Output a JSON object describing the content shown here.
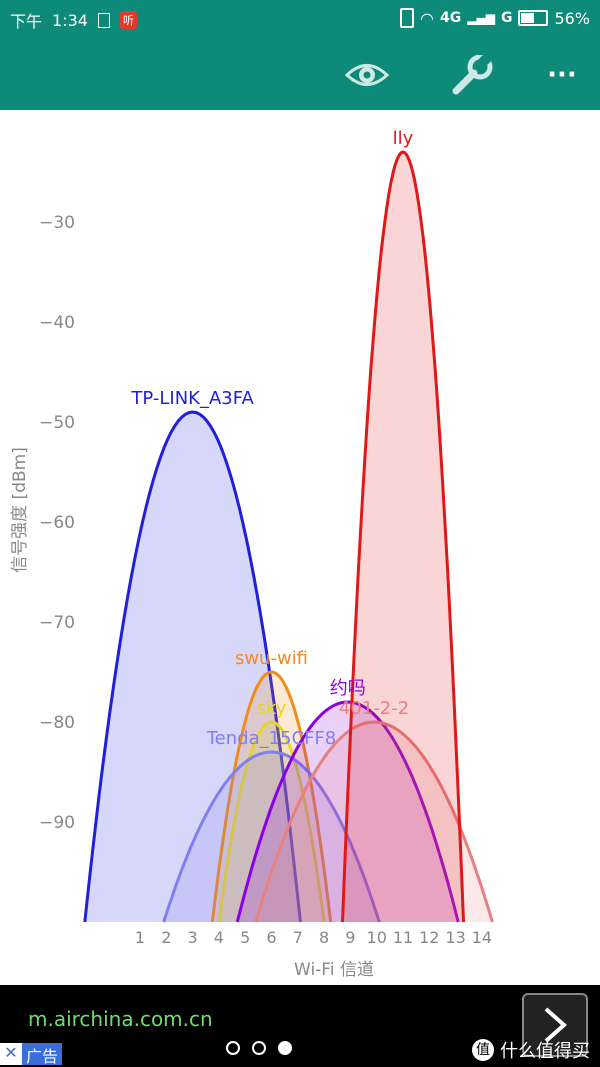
{
  "status_bar": {
    "time_prefix": "下午",
    "time": "1:34",
    "listen_badge": "听",
    "network": "4G",
    "network2": "G",
    "battery": "56%"
  },
  "toolbar": {
    "icons": [
      "eye-icon",
      "wrench-icon",
      "more-icon"
    ],
    "more_label": "···"
  },
  "chart_data": {
    "type": "area",
    "ylabel": "信号强度 [dBm]",
    "xlabel": "Wi-Fi  信道",
    "x_ticks": [
      1,
      2,
      3,
      4,
      5,
      6,
      7,
      8,
      9,
      10,
      11,
      12,
      13,
      14
    ],
    "y_ticks": [
      -30,
      -40,
      -50,
      -60,
      -70,
      -80,
      -90
    ],
    "ylim": [
      -100,
      -24
    ],
    "series": [
      {
        "name": "TP-LINK_A3FA",
        "channel": 3,
        "half_width": 4.1,
        "peak_dbm": -49,
        "color": "#1f1fdc"
      },
      {
        "name": "swu-wifi",
        "channel": 6,
        "half_width": 2.25,
        "peak_dbm": -75,
        "color": "#f08c1a"
      },
      {
        "name": "sky",
        "channel": 6,
        "half_width": 2.0,
        "peak_dbm": -80,
        "color": "#e8d428"
      },
      {
        "name": "Tenda_15CFF8",
        "channel": 6,
        "half_width": 4.1,
        "peak_dbm": -83,
        "color": "#7f7ff0"
      },
      {
        "name": "约吗",
        "channel": 8.9,
        "half_width": 4.2,
        "peak_dbm": -78,
        "color": "#8a00e6"
      },
      {
        "name": "401-2-2",
        "channel": 9.9,
        "half_width": 4.5,
        "peak_dbm": -80,
        "color": "#e88080"
      },
      {
        "name": "lly",
        "channel": 11,
        "half_width": 2.3,
        "peak_dbm": -23,
        "color": "#e01818"
      }
    ]
  },
  "ad": {
    "url": "m.airchina.com.cn",
    "close": "✕",
    "tag": "广告",
    "watermark": "什么值得买",
    "watermark_badge": "值"
  }
}
